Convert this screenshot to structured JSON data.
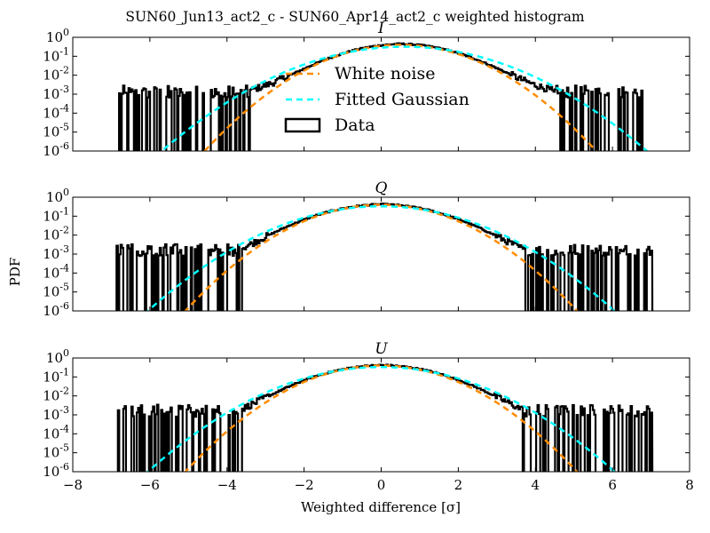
{
  "figure": {
    "suptitle": "SUN60_Jun13_act2_c - SUN60_Apr14_act2_c weighted histogram",
    "ylabel": "PDF",
    "xlabel": "Weighted difference [σ]"
  },
  "colors": {
    "data": "#000000",
    "white_noise": "#ff8c00",
    "gaussian": "#00ffff"
  },
  "chart_data": [
    {
      "type": "line",
      "title": "I",
      "xlim": [
        -8,
        8
      ],
      "ylim_log10": [
        -6,
        0
      ],
      "ylog": true,
      "xticks": [
        "−8",
        "−6",
        "−4",
        "−2",
        "0",
        "2",
        "4",
        "6",
        "8"
      ],
      "yticks": [
        "10^0",
        "10^-1",
        "10^-2",
        "10^-3",
        "10^-4",
        "10^-5",
        "10^-6"
      ],
      "legend": {
        "location": "center-left",
        "entries": [
          "White noise",
          "Fitted Gaussian",
          "Data"
        ]
      },
      "series": [
        {
          "name": "White noise",
          "style": "dashed",
          "color": "#ff8c00",
          "mu": 0.5,
          "sigma": 1.0
        },
        {
          "name": "Fitted Gaussian",
          "style": "dashed",
          "color": "#00ffff",
          "mu": 0.6,
          "sigma": 1.25
        },
        {
          "name": "Data",
          "style": "step",
          "color": "#000000",
          "mu": 0.5,
          "core_sigma": 1.0,
          "tail_scale": 1.1,
          "tail_amp": 0.05,
          "floor_log10": -3.2,
          "range": [
            -6.8,
            7.0
          ]
        }
      ]
    },
    {
      "type": "line",
      "title": "Q",
      "xlim": [
        -8,
        8
      ],
      "ylim_log10": [
        -6,
        0
      ],
      "ylog": true,
      "xticks": [
        "−8",
        "−6",
        "−4",
        "−2",
        "0",
        "2",
        "4",
        "6",
        "8"
      ],
      "yticks": [
        "10^0",
        "10^-1",
        "10^-2",
        "10^-3",
        "10^-4",
        "10^-5",
        "10^-6"
      ],
      "series": [
        {
          "name": "White noise",
          "style": "dashed",
          "color": "#ff8c00",
          "mu": 0.0,
          "sigma": 1.0
        },
        {
          "name": "Fitted Gaussian",
          "style": "dashed",
          "color": "#00ffff",
          "mu": 0.0,
          "sigma": 1.2
        },
        {
          "name": "Data",
          "style": "step",
          "color": "#000000",
          "mu": 0.0,
          "core_sigma": 1.05,
          "tail_scale": 1.0,
          "tail_amp": 0.04,
          "floor_log10": -3.1,
          "range": [
            -6.9,
            7.0
          ]
        }
      ]
    },
    {
      "type": "line",
      "title": "U",
      "xlim": [
        -8,
        8
      ],
      "ylim_log10": [
        -6,
        0
      ],
      "ylog": true,
      "xticks": [
        "−8",
        "−6",
        "−4",
        "−2",
        "0",
        "2",
        "4",
        "6",
        "8"
      ],
      "yticks": [
        "10^0",
        "10^-1",
        "10^-2",
        "10^-3",
        "10^-4",
        "10^-5",
        "10^-6"
      ],
      "series": [
        {
          "name": "White noise",
          "style": "dashed",
          "color": "#ff8c00",
          "mu": 0.0,
          "sigma": 1.0
        },
        {
          "name": "Fitted Gaussian",
          "style": "dashed",
          "color": "#00ffff",
          "mu": 0.0,
          "sigma": 1.2
        },
        {
          "name": "Data",
          "style": "step",
          "color": "#000000",
          "mu": 0.0,
          "core_sigma": 1.05,
          "tail_scale": 1.0,
          "tail_amp": 0.04,
          "floor_log10": -3.1,
          "range": [
            -6.9,
            7.0
          ]
        }
      ]
    }
  ]
}
